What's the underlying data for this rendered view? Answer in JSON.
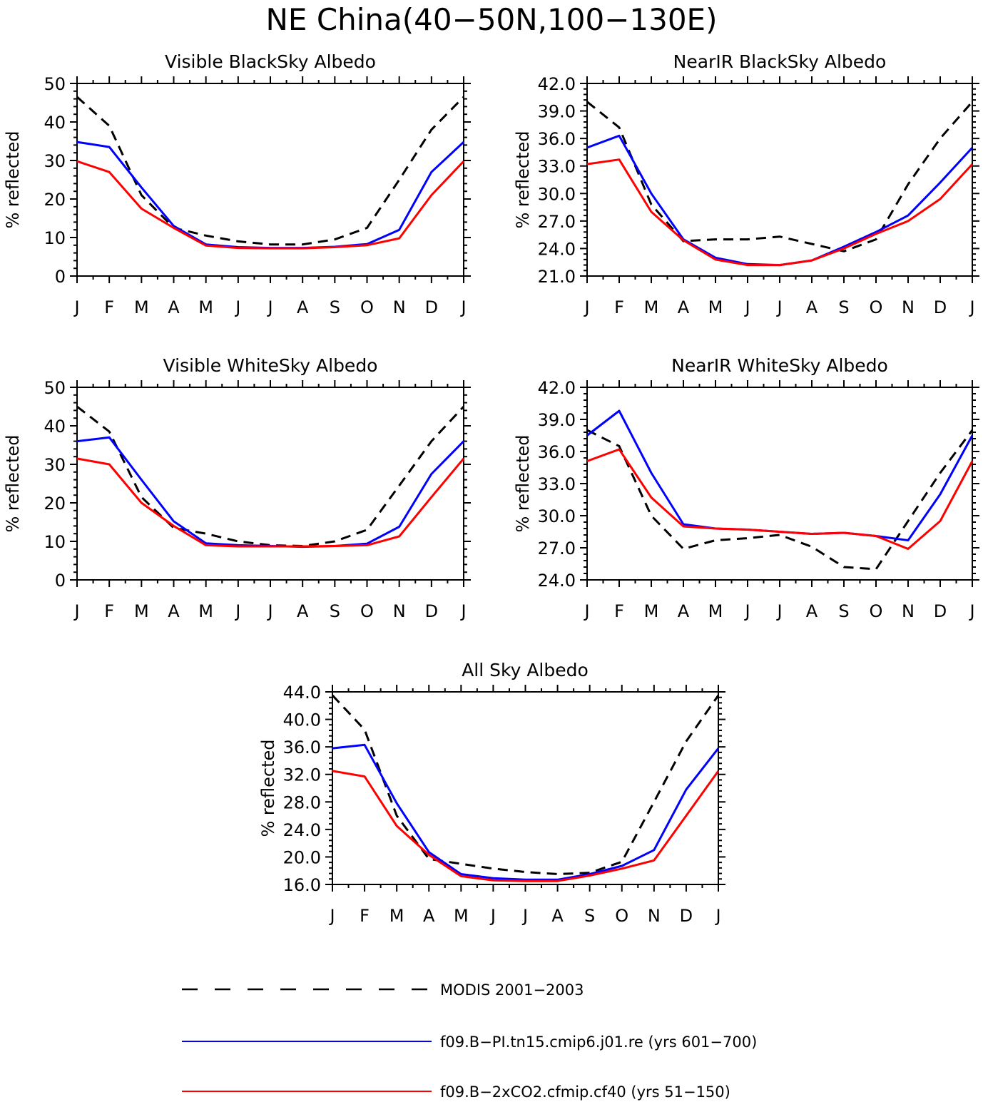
{
  "title": "NE China(40−50N,100−130E)",
  "months": [
    "J",
    "F",
    "M",
    "A",
    "M",
    "J",
    "J",
    "A",
    "S",
    "O",
    "N",
    "D",
    "J"
  ],
  "series_styles": [
    {
      "key": "modis",
      "color": "#000000",
      "dashed": true
    },
    {
      "key": "pi",
      "color": "#0000ff",
      "dashed": false
    },
    {
      "key": "co2",
      "color": "#ff0000",
      "dashed": false
    }
  ],
  "legend": [
    {
      "label": "MODIS 2001−2003",
      "color": "#000000",
      "dashed": true
    },
    {
      "label": "f09.B−PI.tn15.cmip6.j01.re (yrs 601−700)",
      "color": "#0000ff",
      "dashed": false
    },
    {
      "label": "f09.B−2xCO2.cfmip.cf40 (yrs 51−150)",
      "color": "#ff0000",
      "dashed": false
    }
  ],
  "chart_data": [
    {
      "type": "line",
      "title": "Visible BlackSky Albedo",
      "ylabel": "% reflected",
      "ylim": [
        0,
        50
      ],
      "yticks": [
        "0",
        "10",
        "20",
        "30",
        "40",
        "50"
      ],
      "categories": [
        "J",
        "F",
        "M",
        "A",
        "M",
        "J",
        "J",
        "A",
        "S",
        "O",
        "N",
        "D",
        "J"
      ],
      "series": [
        {
          "values": [
            46.5,
            39.0,
            21.0,
            12.5,
            10.5,
            9.0,
            8.2,
            8.2,
            9.5,
            12.5,
            25.0,
            38.0,
            46.5
          ]
        },
        {
          "values": [
            34.8,
            33.5,
            23.0,
            13.0,
            8.2,
            7.5,
            7.3,
            7.3,
            7.6,
            8.3,
            12.0,
            27.0,
            34.8
          ]
        },
        {
          "values": [
            29.8,
            27.0,
            17.5,
            12.5,
            7.9,
            7.3,
            7.2,
            7.2,
            7.5,
            8.0,
            9.8,
            21.0,
            29.8
          ]
        }
      ]
    },
    {
      "type": "line",
      "title": "NearIR BlackSky Albedo",
      "ylabel": "% reflected",
      "ylim": [
        21,
        42
      ],
      "yticks": [
        "21.0",
        "24.0",
        "27.0",
        "30.0",
        "33.0",
        "36.0",
        "39.0",
        "42.0"
      ],
      "categories": [
        "J",
        "F",
        "M",
        "A",
        "M",
        "J",
        "J",
        "A",
        "S",
        "O",
        "N",
        "D",
        "J"
      ],
      "series": [
        {
          "values": [
            40.0,
            37.2,
            28.8,
            24.8,
            25.0,
            25.0,
            25.3,
            24.5,
            23.7,
            25.0,
            31.0,
            36.0,
            40.0
          ]
        },
        {
          "values": [
            35.0,
            36.3,
            30.0,
            25.0,
            23.0,
            22.3,
            22.2,
            22.7,
            24.2,
            25.8,
            27.6,
            31.2,
            35.0
          ]
        },
        {
          "values": [
            33.2,
            33.7,
            28.0,
            24.9,
            22.8,
            22.2,
            22.2,
            22.7,
            24.0,
            25.6,
            27.0,
            29.4,
            33.2
          ]
        }
      ]
    },
    {
      "type": "line",
      "title": "Visible WhiteSky Albedo",
      "ylabel": "% reflected",
      "ylim": [
        0,
        50
      ],
      "yticks": [
        "0",
        "10",
        "20",
        "30",
        "40",
        "50"
      ],
      "categories": [
        "J",
        "F",
        "M",
        "A",
        "M",
        "J",
        "J",
        "A",
        "S",
        "O",
        "N",
        "D",
        "J"
      ],
      "series": [
        {
          "values": [
            45.0,
            38.5,
            21.5,
            13.5,
            12.0,
            10.0,
            9.0,
            8.8,
            10.0,
            13.0,
            24.5,
            36.0,
            45.0
          ]
        },
        {
          "values": [
            36.0,
            37.0,
            26.0,
            15.2,
            9.5,
            9.0,
            8.8,
            8.6,
            8.8,
            9.4,
            13.8,
            27.5,
            36.0
          ]
        },
        {
          "values": [
            31.5,
            30.0,
            20.0,
            14.0,
            9.0,
            8.7,
            8.7,
            8.7,
            8.8,
            9.0,
            11.3,
            21.5,
            31.5
          ]
        }
      ]
    },
    {
      "type": "line",
      "title": "NearIR WhiteSky Albedo",
      "ylabel": "% reflected",
      "ylim": [
        24,
        42
      ],
      "yticks": [
        "24.0",
        "27.0",
        "30.0",
        "33.0",
        "36.0",
        "39.0",
        "42.0"
      ],
      "categories": [
        "J",
        "F",
        "M",
        "A",
        "M",
        "J",
        "J",
        "A",
        "S",
        "O",
        "N",
        "D",
        "J"
      ],
      "series": [
        {
          "values": [
            38.0,
            36.5,
            30.0,
            26.9,
            27.7,
            27.9,
            28.2,
            27.1,
            25.2,
            25.0,
            29.5,
            34.0,
            38.0
          ]
        },
        {
          "values": [
            37.5,
            39.8,
            34.0,
            29.2,
            28.8,
            28.7,
            28.5,
            28.3,
            28.4,
            28.1,
            27.7,
            32.0,
            37.5
          ]
        },
        {
          "values": [
            35.1,
            36.2,
            31.7,
            29.0,
            28.8,
            28.7,
            28.5,
            28.3,
            28.4,
            28.1,
            26.9,
            29.5,
            35.1
          ]
        }
      ]
    },
    {
      "type": "line",
      "title": "All Sky Albedo",
      "ylabel": "% reflected",
      "ylim": [
        16,
        44
      ],
      "yticks": [
        "16.0",
        "20.0",
        "24.0",
        "28.0",
        "32.0",
        "36.0",
        "40.0",
        "44.0"
      ],
      "categories": [
        "J",
        "F",
        "M",
        "A",
        "M",
        "J",
        "J",
        "A",
        "S",
        "O",
        "N",
        "D",
        "J"
      ],
      "series": [
        {
          "values": [
            43.5,
            38.5,
            26.0,
            19.7,
            19.0,
            18.3,
            17.8,
            17.5,
            17.7,
            19.3,
            28.0,
            36.8,
            43.5
          ]
        },
        {
          "values": [
            35.8,
            36.3,
            27.8,
            20.7,
            17.5,
            16.9,
            16.7,
            16.7,
            17.5,
            18.7,
            21.0,
            29.8,
            35.8
          ]
        },
        {
          "values": [
            32.5,
            31.7,
            24.5,
            20.3,
            17.2,
            16.6,
            16.5,
            16.5,
            17.3,
            18.3,
            19.5,
            26.0,
            32.5
          ]
        }
      ]
    }
  ]
}
